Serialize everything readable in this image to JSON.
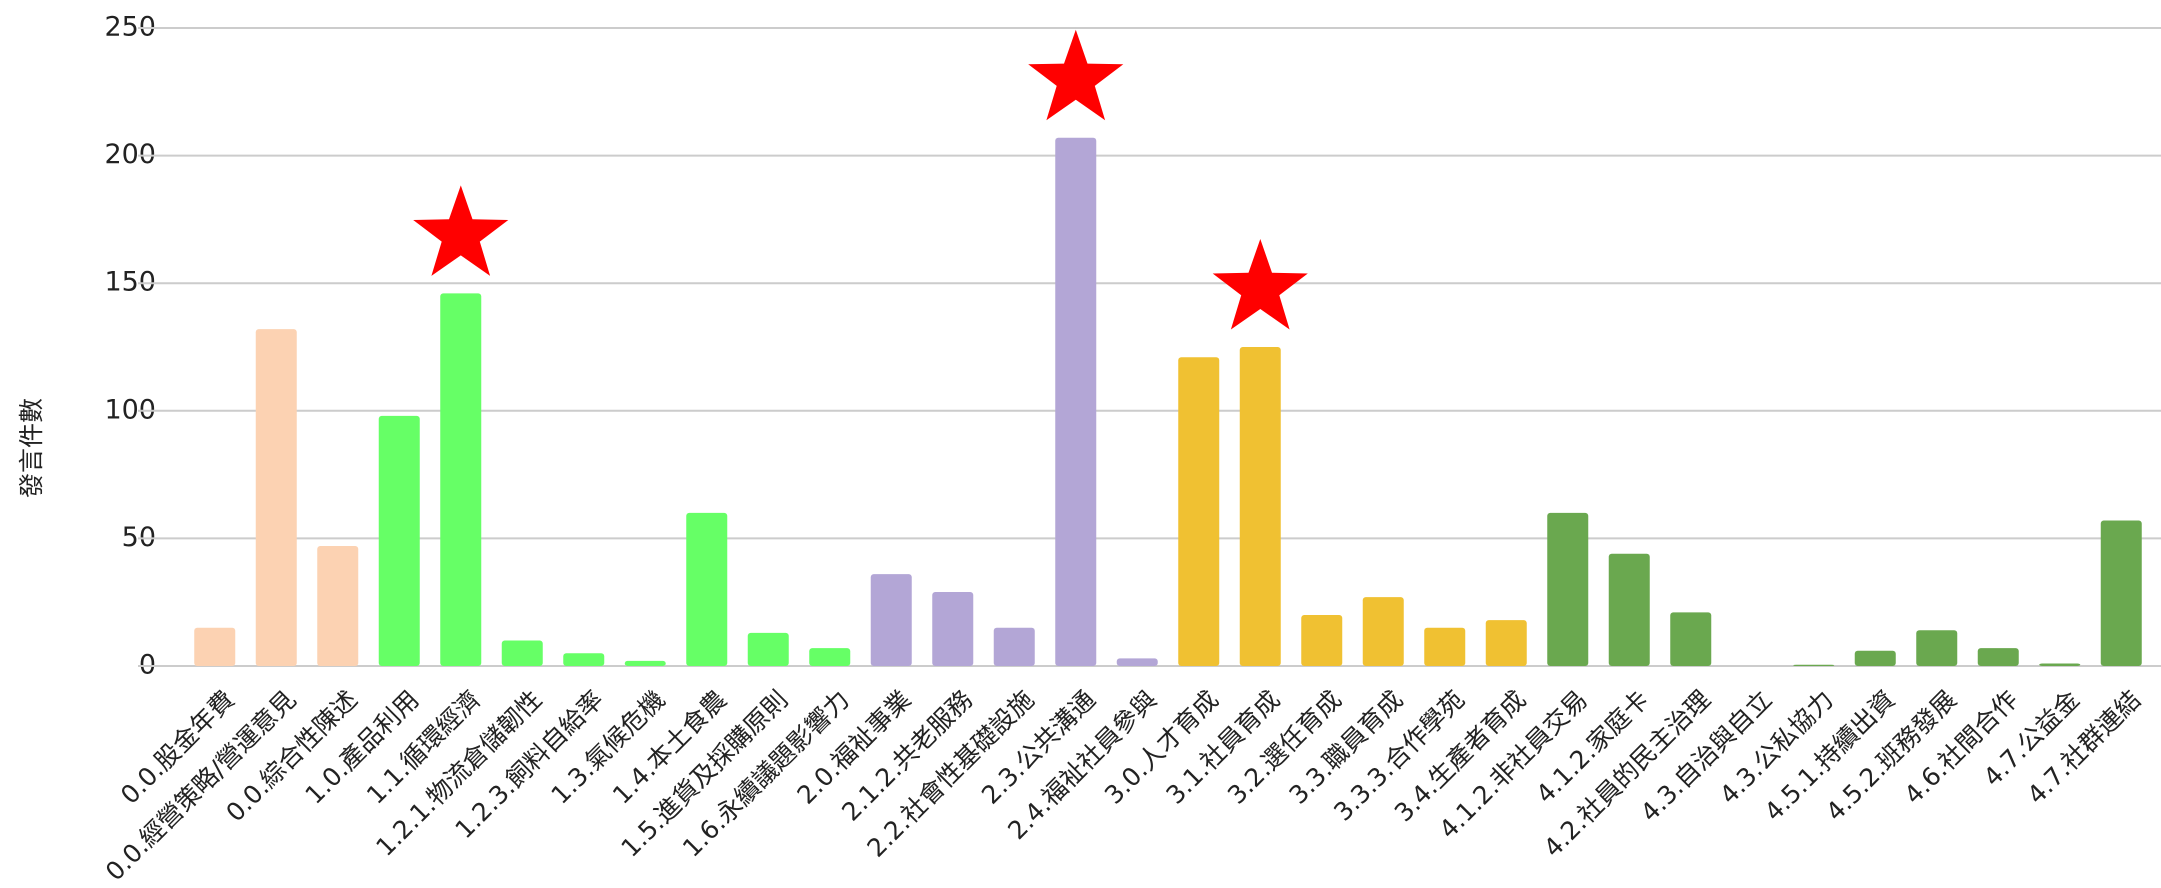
{
  "chart_data": {
    "type": "bar",
    "y_label": "發言件數",
    "categories": [
      "0.0.股金年費",
      "0.0.經營策略/營運意見",
      "0.0.綜合性陳述",
      "1.0.產品利用",
      "1.1.循環經濟",
      "1.2.1.物流倉儲韌性",
      "1.2.3.飼料自給率",
      "1.3.氣候危機",
      "1.4.本土食農",
      "1.5.進貨及採購原則",
      "1.6.永續議題影響力",
      "2.0.福祉事業",
      "2.1.2.共老服務",
      "2.2.社會性基礎設施",
      "2.3.公共溝通",
      "2.4.福祉社員參與",
      "3.0.人才育成",
      "3.1.社員育成",
      "3.2.選任育成",
      "3.3.職員育成",
      "3.3.3.合作學苑",
      "3.4.生產者育成",
      "4.1.2.非社員交易",
      "4.1.2.家庭卡",
      "4.2.社員的民主治理",
      "4.3.自治與自立",
      "4.3.公私協力",
      "4.5.1.持續出資",
      "4.5.2.班務發展",
      "4.6.社間合作",
      "4.7.公益金",
      "4.7.社群連結"
    ],
    "values": [
      15,
      132,
      47,
      98,
      146,
      10,
      5,
      2,
      60,
      13,
      7,
      36,
      29,
      15,
      207,
      3,
      121,
      125,
      20,
      27,
      15,
      18,
      60,
      44,
      21,
      0,
      0.5,
      6,
      14,
      7,
      1,
      57
    ],
    "colors": [
      "#fcd2b2",
      "#fcd2b2",
      "#fcd2b2",
      "#66ff66",
      "#66ff66",
      "#66ff66",
      "#66ff66",
      "#66ff66",
      "#66ff66",
      "#66ff66",
      "#66ff66",
      "#b3a6d6",
      "#b3a6d6",
      "#b3a6d6",
      "#b3a6d6",
      "#b3a6d6",
      "#f0c132",
      "#f0c132",
      "#f0c132",
      "#f0c132",
      "#f0c132",
      "#f0c132",
      "#6aa84f",
      "#6aa84f",
      "#6aa84f",
      "#6aa84f",
      "#6aa84f",
      "#6aa84f",
      "#6aa84f",
      "#6aa84f",
      "#6aa84f",
      "#6aa84f"
    ],
    "highlight": [
      4,
      14,
      17
    ],
    "highlight_color": "#ff0000",
    "ylim": [
      0,
      250
    ],
    "yticks": [
      0,
      50,
      100,
      150,
      200,
      250
    ],
    "grid": true
  }
}
